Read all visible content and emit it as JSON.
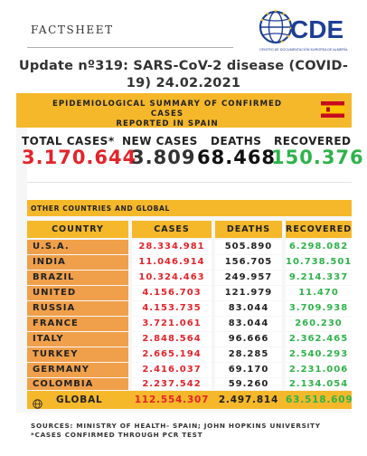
{
  "header": {
    "factsheet": "FACTSHEET",
    "logo_text": "CDE",
    "logo_subtitle": "CENTRO DE DOCUMENTACIÓN EUROPEA DE ALMERÍA",
    "update_line1": "Update nº319: SARS-CoV-2 disease (COVID-",
    "update_line2": "19) 24.02.2021"
  },
  "summary": {
    "title_line1": "EPIDEMIOLOGICAL SUMMARY OF CONFIRMED CASES",
    "title_line2": "REPORTED IN SPAIN",
    "flag_icon": "spain-flag-icon",
    "total_cases_label": "TOTAL CASES*",
    "total_cases": "3.170.644",
    "new_cases_label": "NEW CASES",
    "new_cases": "3.809",
    "deaths_label": "DEATHS",
    "deaths": "68.468",
    "recovered_label": "RECOVERED",
    "recovered": "150.376"
  },
  "other": {
    "section_label": "OTHER COUNTRIES AND GLOBAL",
    "headers": {
      "country": "COUNTRY",
      "cases": "CASES",
      "deaths": "DEATHS",
      "recovered": "RECOVERED"
    },
    "rows": [
      {
        "country": "U.S.A.",
        "cases": "28.334.981",
        "deaths": "505.890",
        "recovered": "6.298.082"
      },
      {
        "country": "INDIA",
        "cases": "11.046.914",
        "deaths": "156.705",
        "recovered": "10.738.501"
      },
      {
        "country": "BRAZIL",
        "cases": "10.324.463",
        "deaths": "249.957",
        "recovered": "9.214.337"
      },
      {
        "country": "UNITED KINGDOM",
        "cases": "4.156.703",
        "deaths": "121.979",
        "recovered": "11.470"
      },
      {
        "country": "RUSSIA",
        "cases": "4.153.735",
        "deaths": "83.044",
        "recovered": "3.709.938"
      },
      {
        "country": "FRANCE",
        "cases": "3.721.061",
        "deaths": "83.044",
        "recovered": "260.230"
      },
      {
        "country": "ITALY",
        "cases": "2.848.564",
        "deaths": "96.666",
        "recovered": "2.362.465"
      },
      {
        "country": "TURKEY",
        "cases": "2.665.194",
        "deaths": "28.285",
        "recovered": "2.540.293"
      },
      {
        "country": "GERMANY",
        "cases": "2.416.037",
        "deaths": "69.170",
        "recovered": "2.231.006"
      },
      {
        "country": "COLOMBIA",
        "cases": "2.237.542",
        "deaths": "59.260",
        "recovered": "2.134.054"
      }
    ],
    "global": {
      "label": "GLOBAL",
      "cases": "112.554.307",
      "deaths": "2.497.814",
      "recovered": "63.518.609"
    }
  },
  "footer": {
    "sources": "SOURCES: MINISTRY OF HEALTH- SPAIN; JOHN HOPKINS UNIVERSITY",
    "note": "*CASES CONFIRMED THROUGH PCR TEST"
  },
  "colors": {
    "accent_orange": "#f5b82a",
    "country_orange": "#f0a04b",
    "cases_red": "#e3242b",
    "recovered_green": "#2eb34a",
    "logo_blue": "#1f3f96"
  }
}
